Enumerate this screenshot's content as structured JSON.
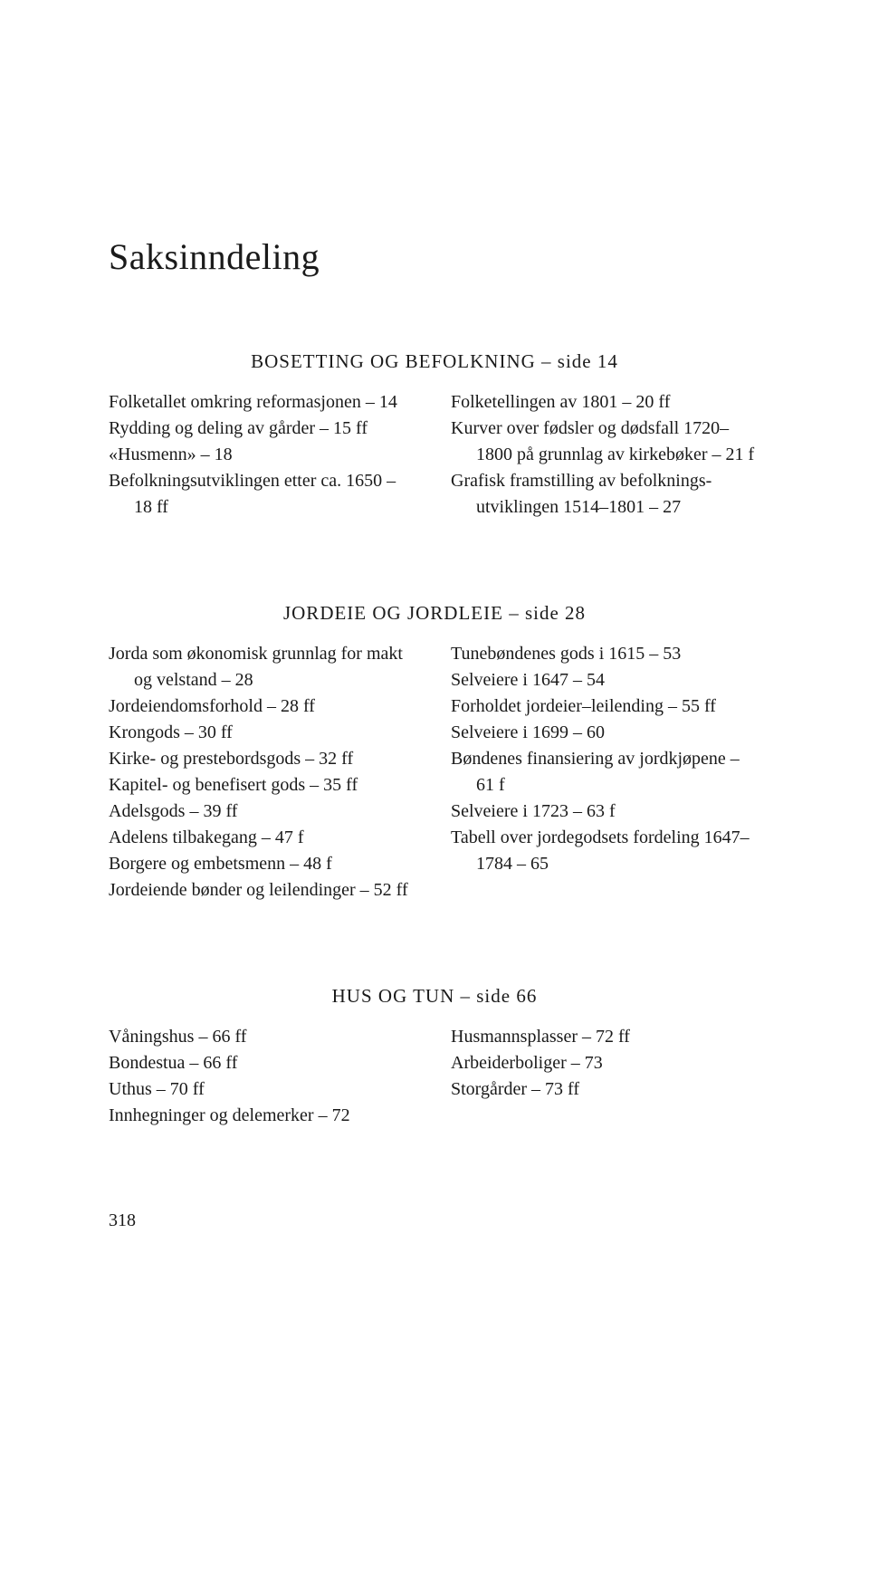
{
  "title": "Saksinndeling",
  "sections": [
    {
      "heading": "BOSETTING OG BEFOLKNING – side 14",
      "left": [
        "Folketallet omkring reformasjonen – 14",
        "Rydding og deling av gårder – 15 ff",
        "«Husmenn» – 18",
        "Befolkningsutviklingen etter ca. 1650 – 18 ff"
      ],
      "right": [
        "Folketellingen av 1801 – 20 ff",
        "Kurver over fødsler og dødsfall 1720–1800 på grunnlag av kirkebøker – 21 f",
        "Grafisk framstilling av befolknings­utviklingen 1514–1801 – 27"
      ]
    },
    {
      "heading": "JORDEIE OG JORDLEIE – side 28",
      "left": [
        "Jorda som økonomisk grunnlag for makt og velstand – 28",
        "Jordeiendomsforhold – 28 ff",
        "Krongods – 30 ff",
        "Kirke- og prestebordsgods – 32 ff",
        "Kapitel- og benefisert gods – 35 ff",
        "Adelsgods – 39 ff",
        "Adelens tilbakegang – 47 f",
        "Borgere og embetsmenn – 48 f",
        "Jordeiende bønder og leilendinger – 52 ff"
      ],
      "right": [
        "Tunebøndenes gods i 1615 – 53",
        "Selveiere i 1647 – 54",
        "Forholdet jordeier–leilending – 55 ff",
        "Selveiere i 1699 – 60",
        "Bøndenes finansiering av jordkjøpene – 61 f",
        "Selveiere i 1723 – 63 f",
        "Tabell over jordegodsets fordeling 1647–1784 – 65"
      ]
    },
    {
      "heading": "HUS OG TUN – side 66",
      "left": [
        "Våningshus – 66 ff",
        "Bondestua – 66 ff",
        "Uthus – 70 ff",
        "Innhegninger og delemerker – 72"
      ],
      "right": [
        "Husmannsplasser – 72 ff",
        "Arbeiderboliger – 73",
        "Storgårder – 73 ff"
      ]
    }
  ],
  "page_number": "318"
}
